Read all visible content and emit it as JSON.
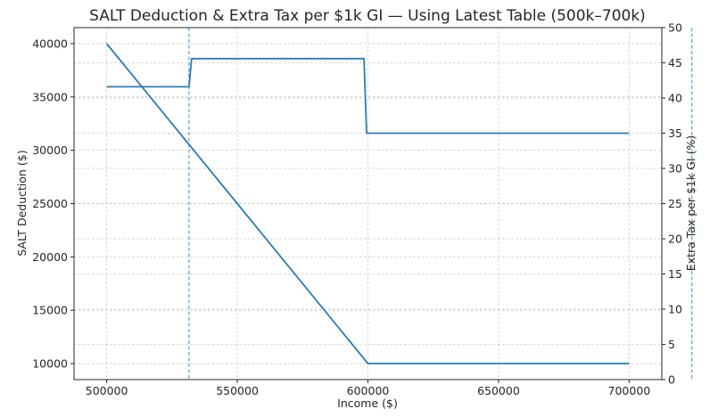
{
  "chart_data": {
    "type": "line",
    "title": "SALT Deduction & Extra Tax per $1k GI — Using Latest Table (500k–700k)",
    "xlabel": "Income ($)",
    "ylabel": "SALT Deduction ($)",
    "y2label": "Extra Tax per $1k GI (%)",
    "xlim": [
      487500,
      712500
    ],
    "ylim": [
      8500,
      41500
    ],
    "y2lim": [
      0,
      50
    ],
    "xticks": [
      500000,
      550000,
      600000,
      650000,
      700000
    ],
    "yticks": [
      10000,
      15000,
      20000,
      25000,
      30000,
      35000,
      40000
    ],
    "y2ticks": [
      0,
      5,
      10,
      15,
      20,
      25,
      30,
      35,
      40,
      45,
      50
    ],
    "grid": true,
    "colors": {
      "line": "#2b7bb4",
      "vline": "#5aa0d0"
    },
    "series": [
      {
        "axis": "left",
        "x": [
          500000,
          600000,
          700000
        ],
        "y": [
          40000,
          10000,
          10000
        ]
      },
      {
        "axis": "right",
        "x": [
          500000,
          531500,
          532500,
          598500,
          599500,
          700000
        ],
        "y": [
          41.6,
          41.6,
          45.6,
          45.6,
          35.0,
          35.0
        ]
      }
    ],
    "vlines": [
      531500,
      724000
    ]
  }
}
